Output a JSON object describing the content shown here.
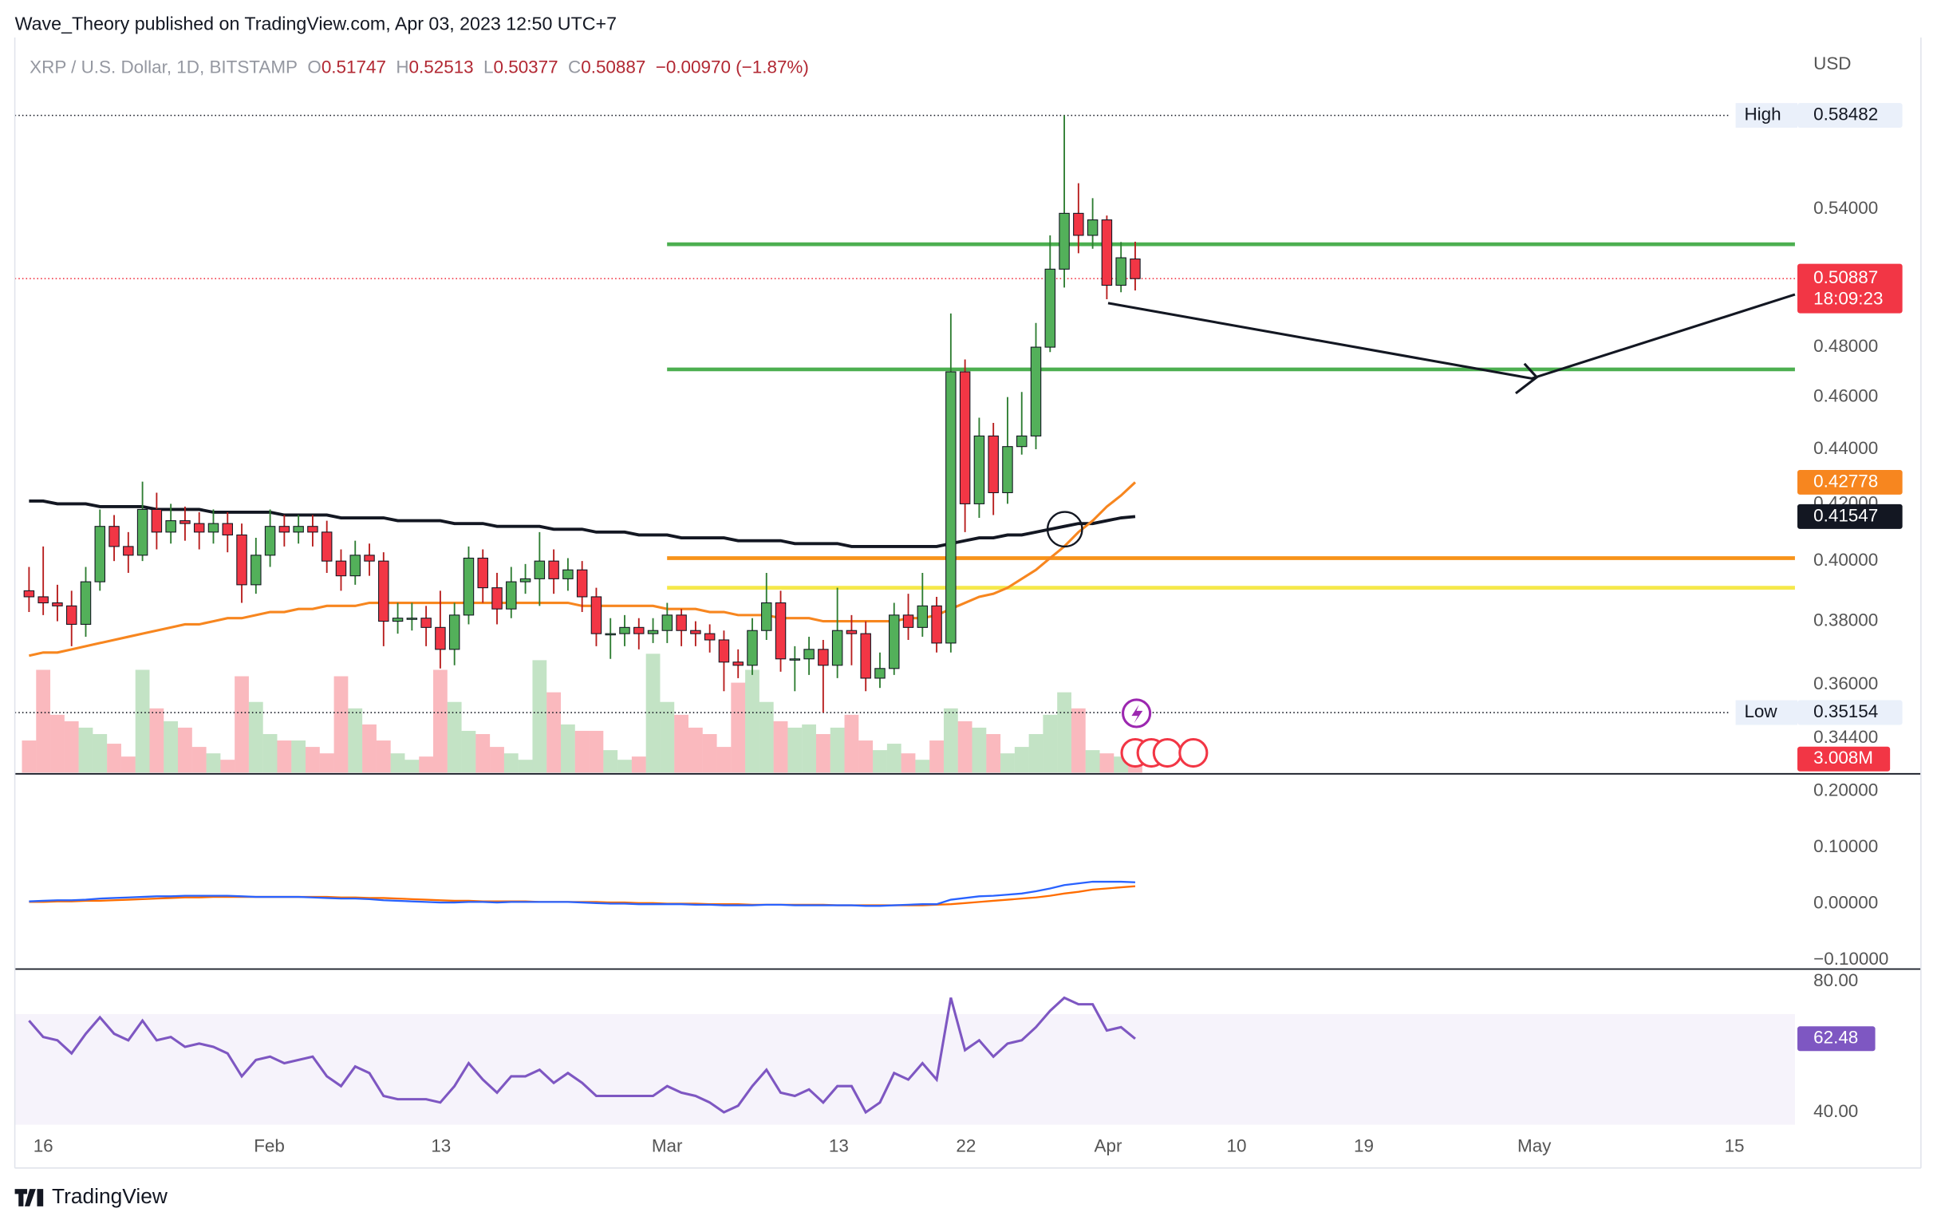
{
  "header": {
    "publisher": "Wave_Theory published on TradingView.com, Apr 03, 2023 12:50 UTC+7",
    "brand": "TradingView"
  },
  "legend": {
    "symbol": "XRP / U.S. Dollar, 1D, BITSTAMP",
    "o": "O",
    "h": "H",
    "l": "L",
    "c": "C",
    "change": "−0.00970 (−1.87%)"
  },
  "chart_data": {
    "type": "candlestick",
    "currency": "USD",
    "log_scale": true,
    "ylim": [
      0.334,
      0.625
    ],
    "yticks": [
      {
        "value": 0.54,
        "label": "0.54000"
      },
      {
        "value": 0.48,
        "label": "0.48000"
      },
      {
        "value": 0.46,
        "label": "0.46000"
      },
      {
        "value": 0.44,
        "label": "0.44000"
      },
      {
        "value": 0.42,
        "label": "0.42000"
      },
      {
        "value": 0.4,
        "label": "0.40000"
      },
      {
        "value": 0.38,
        "label": "0.38000"
      },
      {
        "value": 0.36,
        "label": "0.36000"
      },
      {
        "value": 0.344,
        "label": "0.34400"
      }
    ],
    "x_labels": [
      "16",
      "Feb",
      "13",
      "Mar",
      "13",
      "22",
      "Apr",
      "10",
      "19",
      "May",
      "15"
    ],
    "up_color": "#53b05a",
    "down_color": "#f23645",
    "open": [
      0.39,
      0.388,
      0.386,
      0.385,
      0.379,
      0.393,
      0.412,
      0.405,
      0.402,
      0.418,
      0.41,
      0.414,
      0.413,
      0.41,
      0.413,
      0.409,
      0.392,
      0.402,
      0.412,
      0.41,
      0.412,
      0.41,
      0.4,
      0.395,
      0.402,
      0.4,
      0.38,
      0.381,
      0.381,
      0.378,
      0.371,
      0.382,
      0.401,
      0.391,
      0.384,
      0.393,
      0.394,
      0.4,
      0.394,
      0.397,
      0.388,
      0.376,
      0.376,
      0.378,
      0.376,
      0.377,
      0.382,
      0.377,
      0.376,
      0.374,
      0.367,
      0.366,
      0.377,
      0.386,
      0.368,
      0.368,
      0.371,
      0.366,
      0.377,
      0.376,
      0.362,
      0.365,
      0.382,
      0.378,
      0.385,
      0.373,
      0.47,
      0.42,
      0.445,
      0.424,
      0.441,
      0.445,
      0.48,
      0.513,
      0.538,
      0.528,
      0.535,
      0.506,
      0.51747
    ],
    "high": [
      0.398,
      0.405,
      0.392,
      0.39,
      0.398,
      0.418,
      0.416,
      0.41,
      0.428,
      0.424,
      0.42,
      0.419,
      0.417,
      0.418,
      0.417,
      0.413,
      0.408,
      0.418,
      0.416,
      0.416,
      0.416,
      0.414,
      0.404,
      0.407,
      0.406,
      0.403,
      0.386,
      0.386,
      0.385,
      0.39,
      0.386,
      0.405,
      0.404,
      0.396,
      0.398,
      0.399,
      0.41,
      0.404,
      0.401,
      0.4,
      0.391,
      0.381,
      0.382,
      0.381,
      0.381,
      0.386,
      0.384,
      0.38,
      0.379,
      0.377,
      0.371,
      0.381,
      0.396,
      0.39,
      0.372,
      0.375,
      0.374,
      0.391,
      0.382,
      0.38,
      0.37,
      0.386,
      0.389,
      0.396,
      0.388,
      0.494,
      0.475,
      0.452,
      0.45,
      0.46,
      0.462,
      0.49,
      0.528,
      0.58482,
      0.552,
      0.545,
      0.537,
      0.525,
      0.52513
    ],
    "low": [
      0.383,
      0.382,
      0.38,
      0.372,
      0.375,
      0.39,
      0.4,
      0.396,
      0.4,
      0.404,
      0.406,
      0.407,
      0.404,
      0.406,
      0.403,
      0.386,
      0.389,
      0.398,
      0.405,
      0.406,
      0.405,
      0.396,
      0.39,
      0.392,
      0.395,
      0.372,
      0.376,
      0.377,
      0.372,
      0.365,
      0.366,
      0.379,
      0.386,
      0.379,
      0.381,
      0.389,
      0.385,
      0.389,
      0.39,
      0.383,
      0.372,
      0.368,
      0.372,
      0.371,
      0.373,
      0.373,
      0.372,
      0.372,
      0.37,
      0.358,
      0.362,
      0.363,
      0.374,
      0.364,
      0.358,
      0.363,
      0.35154,
      0.362,
      0.366,
      0.358,
      0.359,
      0.363,
      0.374,
      0.375,
      0.37,
      0.37,
      0.41,
      0.415,
      0.416,
      0.42,
      0.438,
      0.44,
      0.478,
      0.505,
      0.52,
      0.522,
      0.5,
      0.503,
      0.50377
    ],
    "close": [
      0.388,
      0.386,
      0.385,
      0.379,
      0.393,
      0.412,
      0.405,
      0.402,
      0.418,
      0.41,
      0.414,
      0.413,
      0.41,
      0.413,
      0.409,
      0.392,
      0.402,
      0.412,
      0.41,
      0.412,
      0.41,
      0.4,
      0.395,
      0.402,
      0.4,
      0.38,
      0.381,
      0.381,
      0.378,
      0.371,
      0.382,
      0.401,
      0.391,
      0.384,
      0.393,
      0.394,
      0.4,
      0.394,
      0.397,
      0.388,
      0.376,
      0.376,
      0.378,
      0.376,
      0.377,
      0.382,
      0.377,
      0.376,
      0.374,
      0.367,
      0.366,
      0.377,
      0.386,
      0.368,
      0.368,
      0.371,
      0.366,
      0.377,
      0.376,
      0.362,
      0.365,
      0.382,
      0.378,
      0.385,
      0.373,
      0.47,
      0.42,
      0.445,
      0.424,
      0.441,
      0.445,
      0.48,
      0.513,
      0.538,
      0.528,
      0.535,
      0.506,
      0.518,
      0.50887
    ],
    "high_label": "High",
    "low_label": "Low",
    "countdown": "18:09:23",
    "ma_long": {
      "color": "#131722",
      "values": [
        0.421,
        0.421,
        0.42,
        0.42,
        0.42,
        0.419,
        0.419,
        0.419,
        0.419,
        0.418,
        0.418,
        0.418,
        0.418,
        0.417,
        0.417,
        0.417,
        0.417,
        0.417,
        0.416,
        0.416,
        0.416,
        0.416,
        0.415,
        0.415,
        0.415,
        0.415,
        0.414,
        0.414,
        0.414,
        0.414,
        0.413,
        0.413,
        0.413,
        0.412,
        0.412,
        0.412,
        0.412,
        0.411,
        0.411,
        0.411,
        0.41,
        0.41,
        0.41,
        0.409,
        0.409,
        0.409,
        0.408,
        0.408,
        0.408,
        0.408,
        0.407,
        0.407,
        0.407,
        0.407,
        0.406,
        0.406,
        0.406,
        0.406,
        0.405,
        0.405,
        0.405,
        0.405,
        0.405,
        0.405,
        0.405,
        0.406,
        0.407,
        0.408,
        0.408,
        0.409,
        0.409,
        0.41,
        0.411,
        0.412,
        0.413,
        0.413,
        0.414,
        0.415,
        0.41547
      ]
    },
    "ma_short": {
      "color": "#f7861f",
      "values": [
        0.369,
        0.37,
        0.37,
        0.371,
        0.372,
        0.373,
        0.374,
        0.375,
        0.376,
        0.377,
        0.378,
        0.379,
        0.379,
        0.38,
        0.381,
        0.381,
        0.382,
        0.383,
        0.383,
        0.384,
        0.384,
        0.385,
        0.385,
        0.385,
        0.386,
        0.386,
        0.386,
        0.386,
        0.386,
        0.386,
        0.386,
        0.386,
        0.386,
        0.386,
        0.386,
        0.386,
        0.386,
        0.386,
        0.386,
        0.385,
        0.385,
        0.385,
        0.385,
        0.385,
        0.385,
        0.384,
        0.384,
        0.384,
        0.383,
        0.383,
        0.382,
        0.382,
        0.382,
        0.381,
        0.381,
        0.381,
        0.38,
        0.38,
        0.38,
        0.38,
        0.38,
        0.38,
        0.381,
        0.381,
        0.382,
        0.384,
        0.386,
        0.388,
        0.389,
        0.391,
        0.394,
        0.397,
        0.401,
        0.405,
        0.41,
        0.414,
        0.419,
        0.423,
        0.42778
      ]
    },
    "levels": [
      {
        "value": 0.524,
        "color": "#4caf50"
      },
      {
        "value": 0.471,
        "color": "#4caf50"
      },
      {
        "value": 0.401,
        "color": "#f7931a"
      },
      {
        "value": 0.391,
        "color": "#f5e84a"
      }
    ],
    "volume": {
      "values": [
        10,
        32,
        18,
        16,
        14,
        12,
        9,
        5,
        32,
        20,
        16,
        14,
        8,
        6,
        4,
        30,
        22,
        12,
        10,
        10,
        8,
        6,
        30,
        20,
        15,
        10,
        6,
        4,
        5,
        32,
        22,
        13,
        12,
        8,
        6,
        4,
        35,
        25,
        15,
        13,
        13,
        7,
        4,
        5,
        37,
        22,
        18,
        14,
        12,
        8,
        28,
        32,
        22,
        16,
        14,
        15,
        12,
        14,
        18,
        10,
        7,
        9,
        6,
        4,
        10,
        20,
        16,
        14,
        12,
        6,
        8,
        12,
        18,
        25,
        20,
        7,
        6,
        5,
        3.008
      ],
      "last_label": "3.008M"
    },
    "macd": {
      "ylim": [
        -0.1165,
        0.231
      ],
      "yticks": [
        {
          "value": 0.2,
          "label": "0.20000"
        },
        {
          "value": 0.1,
          "label": "0.10000"
        },
        {
          "value": 0,
          "label": "0.00000"
        },
        {
          "value": -0.1,
          "label": "−0.10000"
        }
      ],
      "macd": {
        "color": "#2962ff",
        "values": [
          0.004,
          0.005,
          0.006,
          0.006,
          0.007,
          0.009,
          0.01,
          0.011,
          0.012,
          0.013,
          0.013,
          0.014,
          0.014,
          0.014,
          0.014,
          0.013,
          0.012,
          0.012,
          0.012,
          0.012,
          0.011,
          0.01,
          0.009,
          0.009,
          0.008,
          0.006,
          0.005,
          0.004,
          0.003,
          0.002,
          0.002,
          0.003,
          0.003,
          0.002,
          0.003,
          0.003,
          0.003,
          0.003,
          0.003,
          0.002,
          0.001,
          0.0,
          0.0,
          -0.001,
          -0.001,
          -0.001,
          -0.001,
          -0.002,
          -0.002,
          -0.003,
          -0.003,
          -0.003,
          -0.002,
          -0.002,
          -0.003,
          -0.003,
          -0.003,
          -0.003,
          -0.003,
          -0.004,
          -0.004,
          -0.003,
          -0.002,
          -0.001,
          -0.001,
          0.007,
          0.01,
          0.013,
          0.014,
          0.016,
          0.018,
          0.022,
          0.027,
          0.033,
          0.036,
          0.039,
          0.039,
          0.039,
          0.038
        ]
      },
      "signal": {
        "color": "#ff6d00",
        "values": [
          0.003,
          0.003,
          0.004,
          0.004,
          0.005,
          0.005,
          0.006,
          0.007,
          0.008,
          0.009,
          0.01,
          0.011,
          0.011,
          0.012,
          0.012,
          0.012,
          0.012,
          0.012,
          0.012,
          0.012,
          0.012,
          0.012,
          0.011,
          0.011,
          0.01,
          0.01,
          0.009,
          0.008,
          0.007,
          0.006,
          0.005,
          0.005,
          0.004,
          0.004,
          0.004,
          0.004,
          0.003,
          0.003,
          0.003,
          0.003,
          0.003,
          0.002,
          0.002,
          0.001,
          0.001,
          0.0,
          0.0,
          0.0,
          -0.001,
          -0.001,
          -0.001,
          -0.002,
          -0.002,
          -0.002,
          -0.002,
          -0.002,
          -0.002,
          -0.003,
          -0.003,
          -0.003,
          -0.003,
          -0.003,
          -0.003,
          -0.003,
          -0.002,
          -0.001,
          0.001,
          0.003,
          0.005,
          0.007,
          0.009,
          0.011,
          0.014,
          0.018,
          0.021,
          0.025,
          0.027,
          0.029,
          0.031
        ]
      }
    },
    "rsi": {
      "ylim": [
        36.2,
        83
      ],
      "yticks": [
        {
          "value": 80,
          "label": "80.00"
        },
        {
          "value": 40,
          "label": "40.00"
        }
      ],
      "band": [
        30,
        70
      ],
      "color": "#7e57c2",
      "values": [
        68,
        63,
        62,
        58,
        64,
        69,
        64,
        62,
        68,
        62,
        63,
        60,
        61,
        60,
        58,
        51,
        56,
        57,
        55,
        56,
        57,
        51,
        48,
        54,
        52,
        45,
        44,
        44,
        44,
        43,
        48,
        55,
        50,
        46,
        51,
        51,
        53,
        49,
        52,
        49,
        45,
        45,
        45,
        45,
        45,
        48,
        46,
        45,
        43,
        40,
        42,
        48,
        53,
        46,
        45,
        47,
        43,
        48,
        48,
        40,
        43,
        52,
        50,
        55,
        50,
        75,
        59,
        62,
        57,
        61,
        62,
        66,
        71,
        75,
        73,
        73,
        65,
        66,
        62.48
      ]
    }
  }
}
